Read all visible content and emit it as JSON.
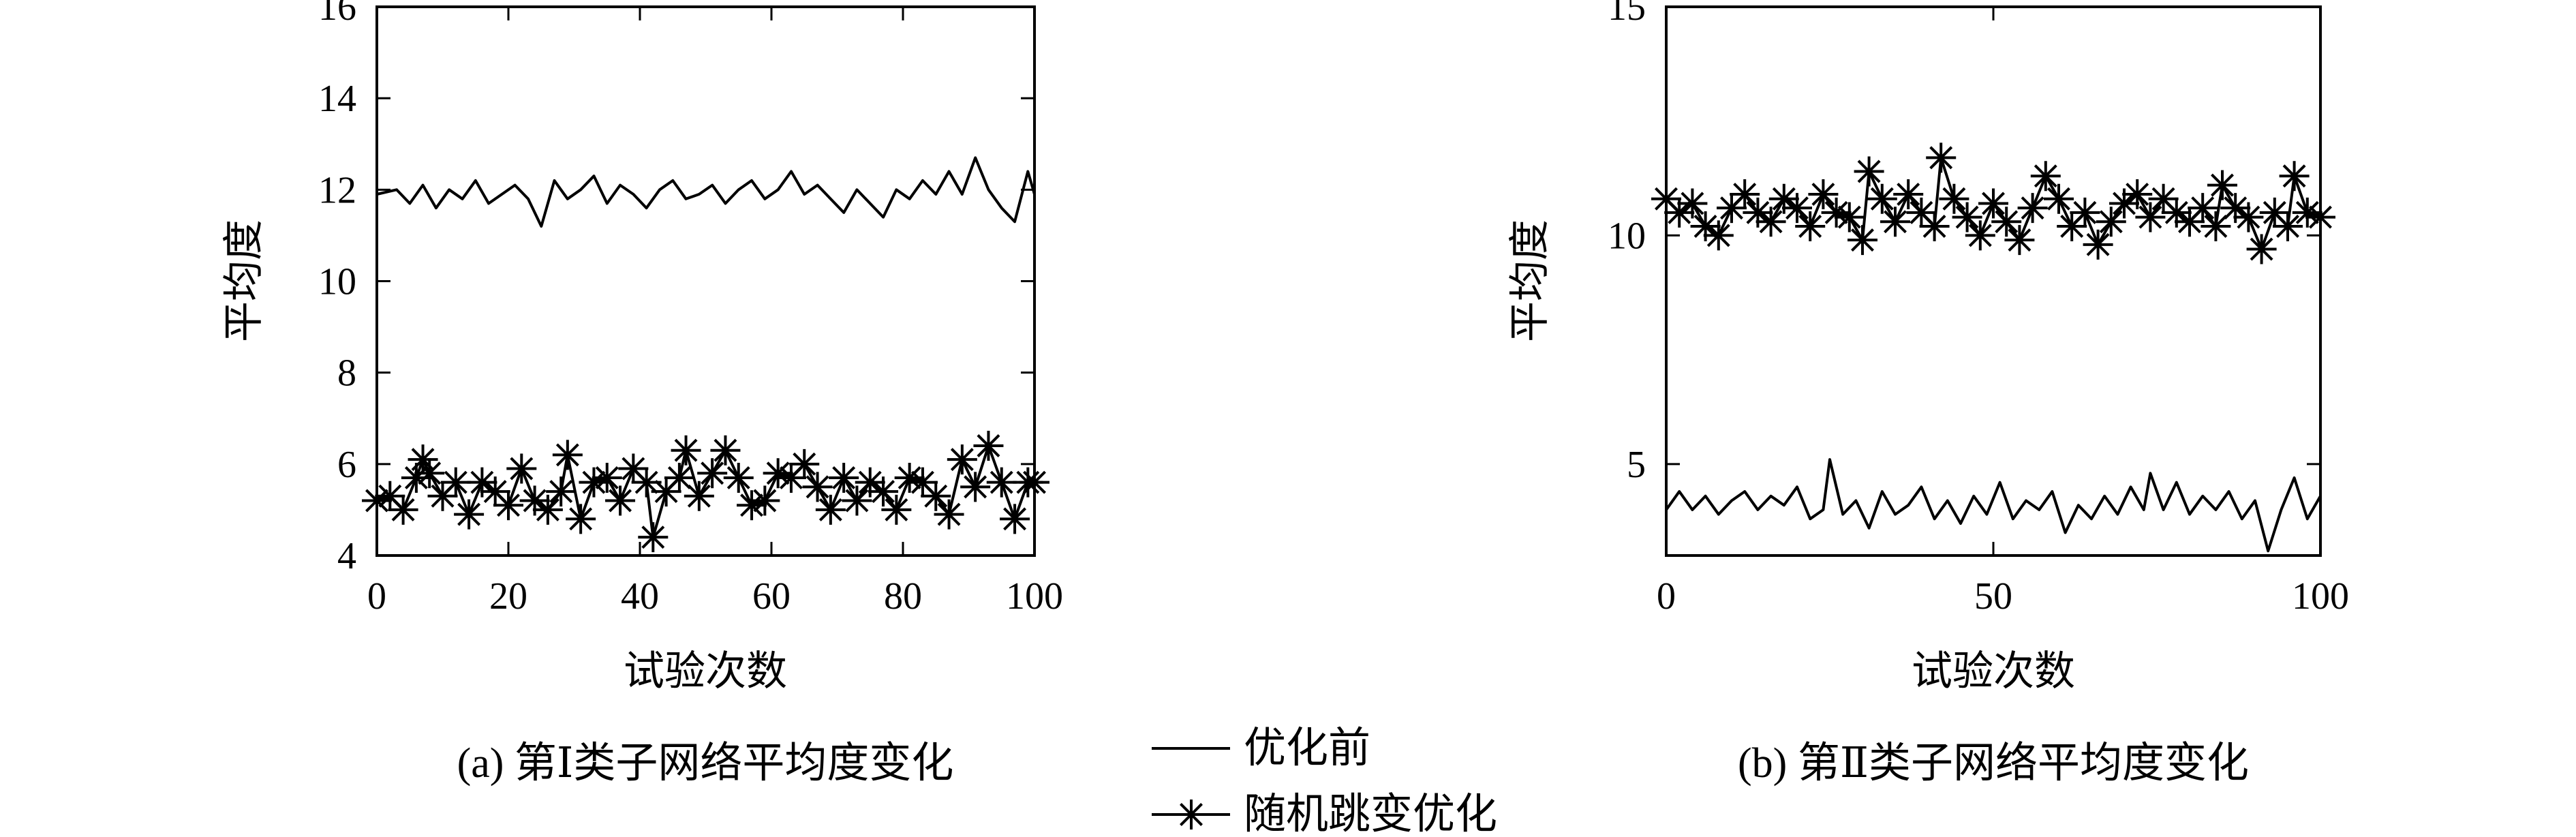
{
  "figure": {
    "caption_a": "(a) 第Ⅰ类子网络平均度变化",
    "caption_b": "(b) 第Ⅱ类子网络平均度变化"
  },
  "legend": {
    "items": [
      {
        "label": "优化前",
        "marker": "none",
        "icon": "line-icon"
      },
      {
        "label": "随机跳变优化",
        "marker": "asterisk",
        "icon": "asterisk-line-icon"
      }
    ]
  },
  "chart_data": [
    {
      "type": "line",
      "title": "",
      "xlabel": "试验次数",
      "ylabel": "平均度",
      "xlim": [
        0,
        100
      ],
      "ylim": [
        4,
        16
      ],
      "xticks": [
        0,
        20,
        40,
        60,
        80,
        100
      ],
      "yticks": [
        4,
        6,
        8,
        10,
        12,
        14,
        16
      ],
      "grid": false,
      "series": [
        {
          "name": "优化前",
          "marker": "none",
          "x": [
            0,
            3,
            5,
            7,
            9,
            11,
            13,
            15,
            17,
            19,
            21,
            23,
            25,
            27,
            29,
            31,
            33,
            35,
            37,
            39,
            41,
            43,
            45,
            47,
            49,
            51,
            53,
            55,
            57,
            59,
            61,
            63,
            65,
            67,
            69,
            71,
            73,
            75,
            77,
            79,
            81,
            83,
            85,
            87,
            89,
            91,
            93,
            95,
            97,
            99,
            100
          ],
          "y": [
            11.9,
            12.0,
            11.7,
            12.1,
            11.6,
            12.0,
            11.8,
            12.2,
            11.7,
            11.9,
            12.1,
            11.8,
            11.2,
            12.2,
            11.8,
            12.0,
            12.3,
            11.7,
            12.1,
            11.9,
            11.6,
            12.0,
            12.2,
            11.8,
            11.9,
            12.1,
            11.7,
            12.0,
            12.2,
            11.8,
            12.0,
            12.4,
            11.9,
            12.1,
            11.8,
            11.5,
            12.0,
            11.7,
            11.4,
            12.0,
            11.8,
            12.2,
            11.9,
            12.4,
            11.9,
            12.7,
            12.0,
            11.6,
            11.3,
            12.4,
            11.9
          ]
        },
        {
          "name": "随机跳变优化",
          "marker": "asterisk",
          "x": [
            0,
            2,
            4,
            6,
            7,
            8,
            10,
            12,
            14,
            16,
            18,
            20,
            22,
            24,
            26,
            28,
            29,
            31,
            33,
            35,
            37,
            39,
            41,
            42,
            44,
            46,
            47,
            49,
            51,
            53,
            55,
            57,
            59,
            61,
            63,
            65,
            67,
            69,
            71,
            73,
            75,
            77,
            79,
            81,
            83,
            85,
            87,
            89,
            91,
            93,
            95,
            97,
            99,
            100
          ],
          "y": [
            5.2,
            5.3,
            5.0,
            5.7,
            6.1,
            5.8,
            5.3,
            5.6,
            4.9,
            5.6,
            5.4,
            5.1,
            5.9,
            5.2,
            5.0,
            5.4,
            6.2,
            4.8,
            5.6,
            5.7,
            5.2,
            5.9,
            5.6,
            4.4,
            5.4,
            5.7,
            6.3,
            5.3,
            5.8,
            6.3,
            5.7,
            5.1,
            5.2,
            5.8,
            5.7,
            6.0,
            5.5,
            5.0,
            5.7,
            5.2,
            5.6,
            5.4,
            5.0,
            5.7,
            5.6,
            5.3,
            4.9,
            6.1,
            5.5,
            6.4,
            5.6,
            4.8,
            5.6,
            5.6
          ]
        }
      ]
    },
    {
      "type": "line",
      "title": "",
      "xlabel": "试验次数",
      "ylabel": "平均度",
      "xlim": [
        0,
        100
      ],
      "ylim": [
        3,
        15
      ],
      "xticks": [
        0,
        50,
        100
      ],
      "yticks": [
        5,
        10,
        15
      ],
      "grid": false,
      "series": [
        {
          "name": "优化前",
          "marker": "none",
          "x": [
            0,
            2,
            4,
            6,
            8,
            10,
            12,
            14,
            16,
            18,
            20,
            22,
            24,
            25,
            27,
            29,
            31,
            33,
            35,
            37,
            39,
            41,
            43,
            45,
            47,
            49,
            51,
            53,
            55,
            57,
            59,
            61,
            63,
            65,
            67,
            69,
            71,
            73,
            74,
            76,
            78,
            80,
            82,
            84,
            86,
            88,
            90,
            92,
            94,
            96,
            98,
            100
          ],
          "y": [
            4.0,
            4.4,
            4.0,
            4.3,
            3.9,
            4.2,
            4.4,
            4.0,
            4.3,
            4.1,
            4.5,
            3.8,
            4.0,
            5.1,
            3.9,
            4.2,
            3.6,
            4.4,
            3.9,
            4.1,
            4.5,
            3.8,
            4.2,
            3.7,
            4.3,
            3.9,
            4.6,
            3.8,
            4.2,
            4.0,
            4.4,
            3.5,
            4.1,
            3.8,
            4.3,
            3.9,
            4.5,
            4.0,
            4.8,
            4.0,
            4.6,
            3.9,
            4.3,
            4.0,
            4.4,
            3.8,
            4.2,
            3.1,
            4.0,
            4.7,
            3.8,
            4.3
          ]
        },
        {
          "name": "随机跳变优化",
          "marker": "asterisk",
          "x": [
            0,
            2,
            4,
            6,
            8,
            10,
            12,
            14,
            16,
            18,
            20,
            22,
            24,
            26,
            28,
            30,
            31,
            33,
            35,
            37,
            39,
            41,
            42,
            44,
            46,
            48,
            50,
            52,
            54,
            56,
            58,
            60,
            62,
            64,
            66,
            68,
            70,
            72,
            74,
            76,
            78,
            80,
            82,
            84,
            85,
            87,
            89,
            91,
            93,
            95,
            96,
            98,
            100
          ],
          "y": [
            10.8,
            10.5,
            10.7,
            10.2,
            10.0,
            10.6,
            10.9,
            10.5,
            10.3,
            10.8,
            10.6,
            10.2,
            10.9,
            10.5,
            10.4,
            9.9,
            11.4,
            10.8,
            10.3,
            10.9,
            10.5,
            10.2,
            11.7,
            10.8,
            10.4,
            10.0,
            10.7,
            10.3,
            9.9,
            10.6,
            11.3,
            10.8,
            10.2,
            10.5,
            9.8,
            10.3,
            10.7,
            10.9,
            10.4,
            10.8,
            10.5,
            10.3,
            10.6,
            10.2,
            11.1,
            10.6,
            10.4,
            9.7,
            10.5,
            10.2,
            11.3,
            10.5,
            10.4
          ]
        }
      ]
    }
  ]
}
